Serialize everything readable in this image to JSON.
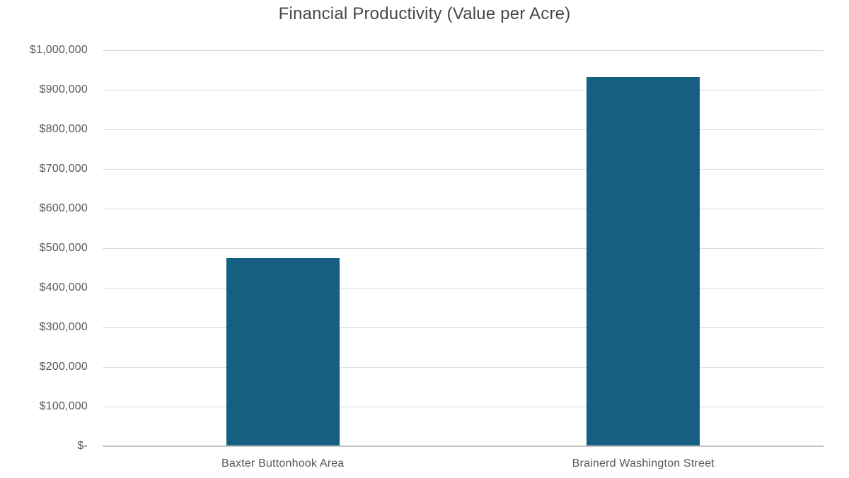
{
  "colors": {
    "bar": "#156082",
    "gridline": "#d9d9d9",
    "axis_line": "#c6c6c6",
    "title_text": "#474747",
    "label_text": "#595959",
    "background": "#ffffff"
  },
  "chart_data": {
    "type": "bar",
    "title": "Financial Productivity (Value per Acre)",
    "categories": [
      "Baxter Buttonhook Area",
      "Brainerd Washington Street"
    ],
    "values": [
      475000,
      933000
    ],
    "xlabel": "",
    "ylabel": "",
    "ylim": [
      0,
      1000000
    ],
    "y_tick_interval": 100000,
    "y_tick_labels": [
      "$1,000,000",
      "$900,000",
      "$800,000",
      "$700,000",
      "$600,000",
      "$500,000",
      "$400,000",
      "$300,000",
      "$200,000",
      "$100,000",
      "$-"
    ],
    "grid": true,
    "legend": false,
    "bar_color": "#156082"
  }
}
